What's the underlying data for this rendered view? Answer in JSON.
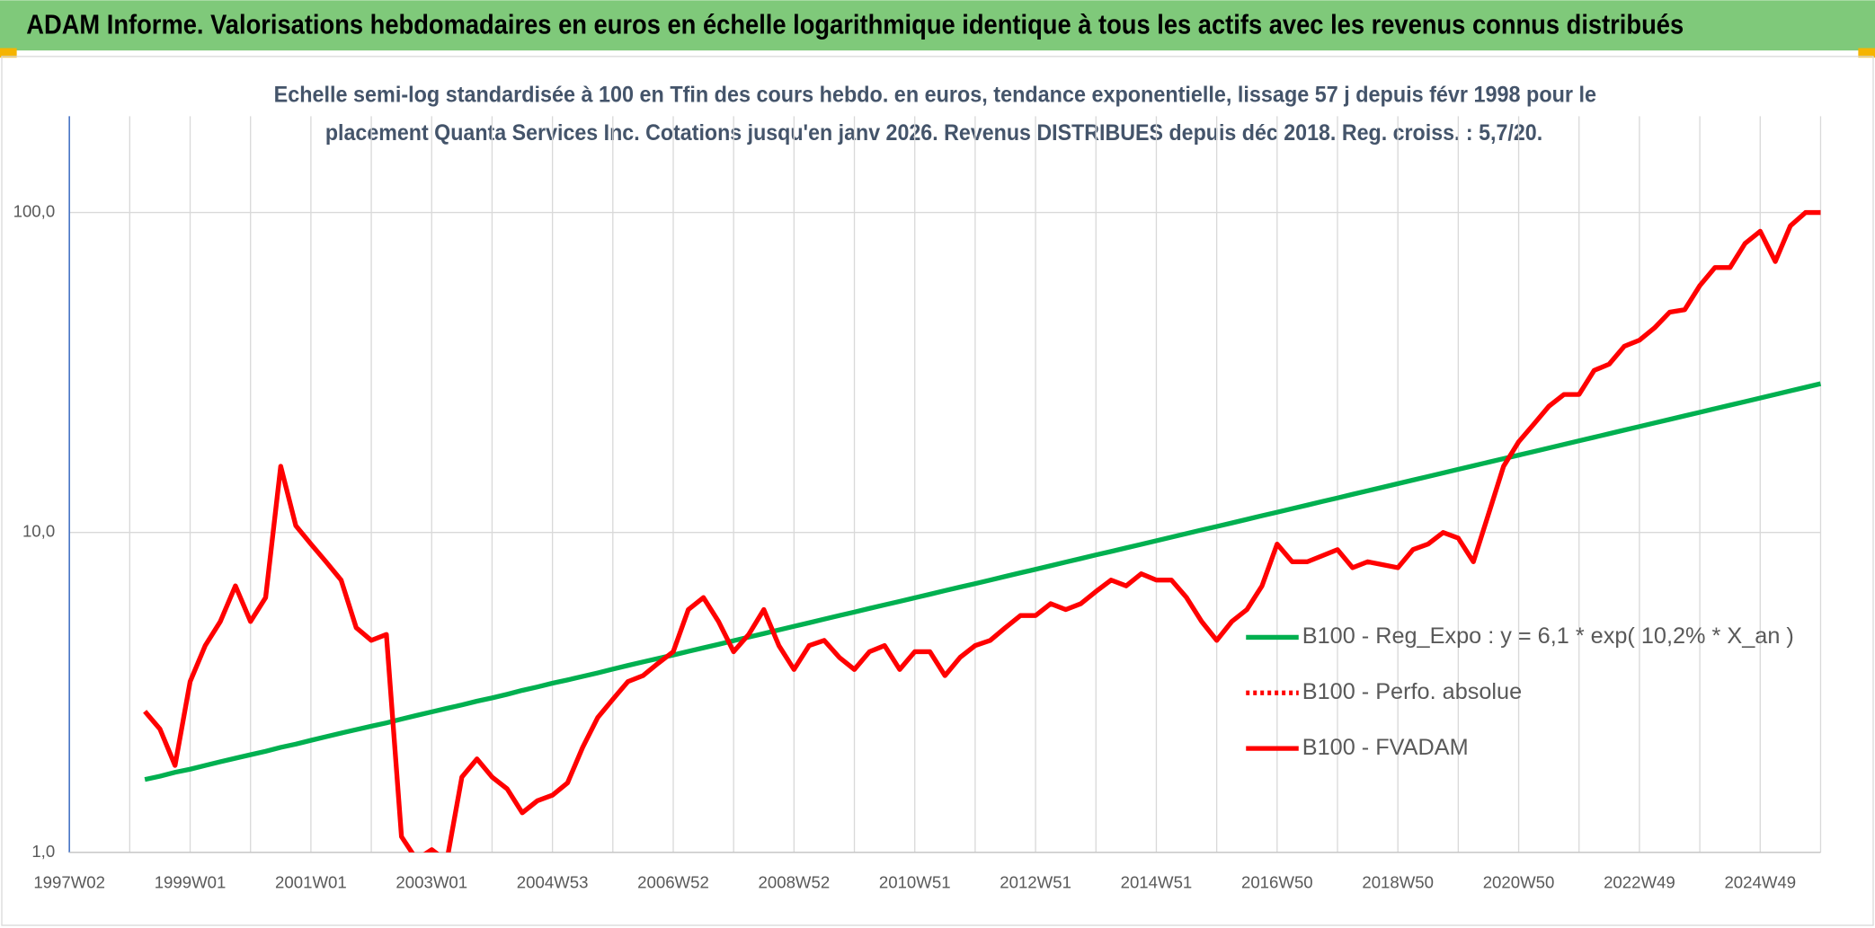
{
  "header": {
    "title": "ADAM Informe. Valorisations hebdomadaires en euros en échelle logarithmique identique à tous les actifs avec les revenus connus distribués"
  },
  "chart_data": {
    "type": "line",
    "subtitle": [
      "Echelle semi-log standardisée à 100 en Tfin des cours hebdo. en euros, tendance exponentielle, lissage 57 j depuis févr 1998 pour le",
      "placement Quanta Services Inc. Cotations jusqu'en janv 2026. Revenus DISTRIBUES depuis déc 2018. Reg. croiss. : 5,7/20."
    ],
    "yscale": "log",
    "ylim": [
      1,
      200
    ],
    "yticks": [
      {
        "value": 1,
        "label": "1,0"
      },
      {
        "value": 10,
        "label": "10,0"
      },
      {
        "value": 100,
        "label": "100,0"
      }
    ],
    "grid": true,
    "legend": "right",
    "categories": [
      "1997W02",
      null,
      null,
      null,
      null,
      null,
      null,
      null,
      "1999W01",
      null,
      null,
      null,
      null,
      null,
      null,
      null,
      "2001W01",
      null,
      null,
      null,
      null,
      null,
      null,
      null,
      "2003W01",
      null,
      null,
      null,
      null,
      null,
      null,
      null,
      "2004W53",
      null,
      null,
      null,
      null,
      null,
      null,
      null,
      "2006W52",
      null,
      null,
      null,
      null,
      null,
      null,
      null,
      "2008W52",
      null,
      null,
      null,
      null,
      null,
      null,
      null,
      "2010W51",
      null,
      null,
      null,
      null,
      null,
      null,
      null,
      "2012W51",
      null,
      null,
      null,
      null,
      null,
      null,
      null,
      "2014W51",
      null,
      null,
      null,
      null,
      null,
      null,
      null,
      "2016W50",
      null,
      null,
      null,
      null,
      null,
      null,
      null,
      "2018W50",
      null,
      null,
      null,
      null,
      null,
      null,
      null,
      "2020W50",
      null,
      null,
      null,
      null,
      null,
      null,
      null,
      "2022W49",
      null,
      null,
      null,
      null,
      null,
      null,
      null,
      "2024W49",
      null,
      null,
      null,
      null
    ],
    "series": [
      {
        "name": "B100 - Reg_Expo : y = 6,1 * exp( 10,2% *  X_an )",
        "color": "#00b050",
        "style": "solid",
        "values": [
          null,
          null,
          null,
          null,
          null,
          1.69,
          1.73,
          1.78,
          1.82,
          1.87,
          1.92,
          1.97,
          2.02,
          2.07,
          2.13,
          2.18,
          2.24,
          2.3,
          2.36,
          2.42,
          2.48,
          2.54,
          2.61,
          2.68,
          2.75,
          2.82,
          2.89,
          2.97,
          3.04,
          3.12,
          3.21,
          3.29,
          3.38,
          3.46,
          3.55,
          3.64,
          3.74,
          3.84,
          3.94,
          4.04,
          4.14,
          4.25,
          4.36,
          4.47,
          4.59,
          4.71,
          4.83,
          4.96,
          5.09,
          5.22,
          5.36,
          5.5,
          5.64,
          5.79,
          5.94,
          6.09,
          6.25,
          6.41,
          6.58,
          6.75,
          6.92,
          7.1,
          7.29,
          7.48,
          7.67,
          7.87,
          8.08,
          8.29,
          8.51,
          8.72,
          8.95,
          9.18,
          9.42,
          9.67,
          9.92,
          10.18,
          10.44,
          10.71,
          10.99,
          11.28,
          11.57,
          11.87,
          12.18,
          12.5,
          12.82,
          13.16,
          13.5,
          13.85,
          14.21,
          14.58,
          14.96,
          15.35,
          15.75,
          16.16,
          16.58,
          17.01,
          17.45,
          17.9,
          18.37,
          18.85,
          19.34,
          19.84,
          20.36,
          20.89,
          21.43,
          21.99,
          22.56,
          23.15,
          23.75,
          24.37,
          25.0,
          25.65,
          26.32,
          27.01,
          27.71,
          28.43,
          29.17
        ]
      },
      {
        "name": "B100 - Perfo. absolue",
        "color": "#ff0000",
        "style": "dotted",
        "values": [
          null,
          null,
          null,
          null,
          null,
          null,
          null,
          null,
          null,
          null,
          null,
          null,
          null,
          null,
          null,
          null,
          null,
          null,
          null,
          null,
          null,
          null,
          null,
          null,
          null,
          null,
          null,
          null,
          null,
          null,
          null,
          null,
          null,
          null,
          null,
          null,
          null,
          null,
          null,
          null,
          null,
          null,
          null,
          null,
          null,
          null,
          null,
          null,
          null,
          null,
          null,
          null,
          null,
          null,
          null,
          null,
          null,
          null,
          null,
          null,
          null,
          null,
          null,
          null,
          null,
          null,
          null,
          null,
          null,
          null,
          null,
          null,
          null,
          null,
          null,
          null,
          null,
          null,
          null,
          null,
          null,
          null,
          null,
          null,
          null,
          null,
          null,
          null,
          null,
          null,
          null,
          null,
          null,
          null,
          null,
          null,
          null,
          null,
          null,
          null,
          null,
          null,
          null,
          null,
          null,
          null,
          null,
          null,
          null,
          null,
          null,
          null,
          null,
          null,
          null,
          null,
          null
        ]
      },
      {
        "name": "B100 - FVADAM",
        "color": "#ff0000",
        "style": "solid",
        "values": [
          null,
          null,
          null,
          null,
          null,
          2.76,
          2.43,
          1.87,
          3.42,
          4.43,
          5.27,
          6.81,
          5.27,
          6.26,
          16.1,
          10.5,
          9.2,
          8.1,
          7.1,
          5.04,
          4.6,
          4.8,
          1.12,
          0.95,
          1.02,
          0.94,
          1.72,
          1.96,
          1.72,
          1.58,
          1.33,
          1.45,
          1.51,
          1.65,
          2.13,
          2.64,
          3.01,
          3.42,
          3.57,
          3.9,
          4.24,
          5.74,
          6.26,
          5.27,
          4.24,
          4.8,
          5.74,
          4.43,
          3.73,
          4.43,
          4.6,
          4.07,
          3.73,
          4.24,
          4.43,
          3.73,
          4.24,
          4.24,
          3.57,
          4.07,
          4.43,
          4.6,
          5.04,
          5.5,
          5.5,
          5.99,
          5.74,
          5.99,
          6.54,
          7.1,
          6.81,
          7.43,
          7.1,
          7.1,
          6.26,
          5.27,
          4.6,
          5.27,
          5.74,
          6.81,
          9.2,
          8.1,
          8.1,
          8.46,
          8.84,
          7.76,
          8.1,
          7.93,
          7.76,
          8.84,
          9.2,
          10.0,
          9.6,
          8.1,
          11.4,
          16.1,
          19.2,
          21.8,
          24.8,
          27.0,
          27.0,
          32.1,
          33.6,
          38.2,
          39.9,
          43.6,
          48.8,
          49.7,
          59.1,
          67.3,
          67.3,
          80.1,
          87.4,
          70.3,
          90.9,
          100,
          100
        ]
      }
    ]
  }
}
